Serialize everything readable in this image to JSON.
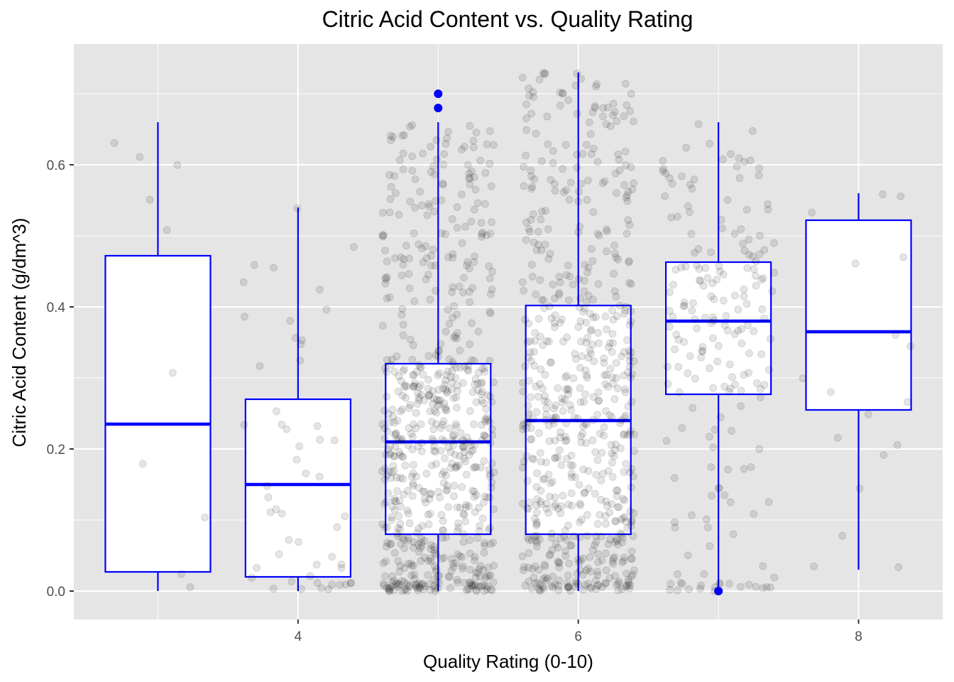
{
  "chart_data": {
    "type": "boxplot",
    "title": "Citric Acid Content vs. Quality Rating",
    "xlabel": "Quality Rating (0-10)",
    "ylabel": "Citric Acid Content (g/dm^3)",
    "xlim": [
      2.4,
      8.6
    ],
    "ylim": [
      -0.04,
      0.77
    ],
    "x_ticks": [
      4,
      6,
      8
    ],
    "y_ticks": [
      0.0,
      0.2,
      0.4,
      0.6
    ],
    "x_tick_labels": [
      "4",
      "6",
      "8"
    ],
    "y_tick_labels": [
      "0.0",
      "0.2",
      "0.4",
      "0.6"
    ],
    "grid": true,
    "box_color": "#0000ff",
    "point_color": "#000000",
    "panel_background": "#e5e5e5",
    "boxes": [
      {
        "quality": 3,
        "min": 0.0,
        "q1": 0.027,
        "median": 0.235,
        "q3": 0.472,
        "max": 0.66,
        "outliers": []
      },
      {
        "quality": 4,
        "min": 0.0,
        "q1": 0.02,
        "median": 0.15,
        "q3": 0.27,
        "max": 0.54,
        "outliers": []
      },
      {
        "quality": 5,
        "min": 0.0,
        "q1": 0.08,
        "median": 0.21,
        "q3": 0.32,
        "max": 0.66,
        "outliers": [
          0.68,
          0.7
        ]
      },
      {
        "quality": 6,
        "min": 0.0,
        "q1": 0.08,
        "median": 0.24,
        "q3": 0.402,
        "max": 0.73,
        "outliers": []
      },
      {
        "quality": 7,
        "min": 0.0,
        "q1": 0.277,
        "median": 0.38,
        "q3": 0.463,
        "max": 0.66,
        "outliers": [
          0.0
        ]
      },
      {
        "quality": 8,
        "min": 0.03,
        "q1": 0.255,
        "median": 0.365,
        "q3": 0.522,
        "max": 0.56,
        "outliers": []
      }
    ],
    "jitter_points": [
      {
        "quality": 3,
        "n": 10
      },
      {
        "quality": 4,
        "n": 53
      },
      {
        "quality": 5,
        "n": 681
      },
      {
        "quality": 6,
        "n": 638
      },
      {
        "quality": 7,
        "n": 199
      },
      {
        "quality": 8,
        "n": 18
      }
    ]
  }
}
